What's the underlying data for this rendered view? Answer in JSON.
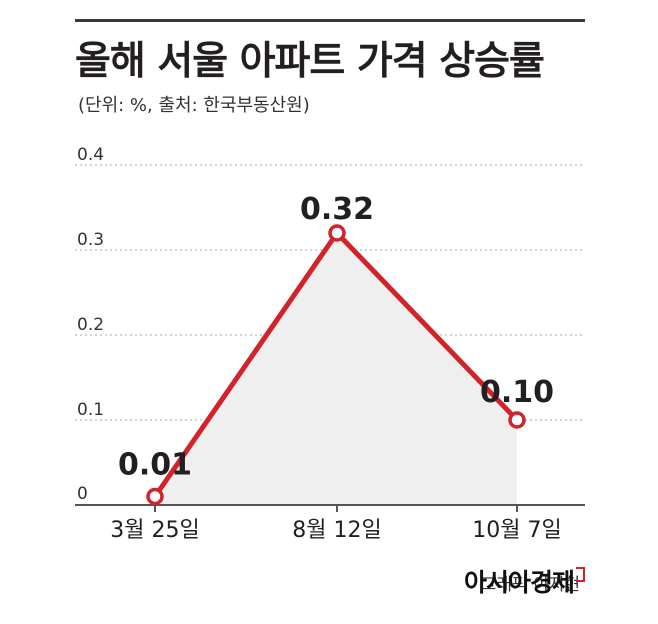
{
  "chart_data": {
    "type": "area",
    "title": "올해 서울 아파트 가격 상승률",
    "subtitle": "(단위: %, 출처: 한국부동산원)",
    "categories": [
      "3월 25일",
      "8월 12일",
      "10월 7일"
    ],
    "values": [
      0.01,
      0.32,
      0.1
    ],
    "data_labels": [
      "0.01",
      "0.32",
      "0.10"
    ],
    "yticks": [
      "0",
      "0.1",
      "0.2",
      "0.3",
      "0.4"
    ],
    "ylim": [
      0,
      0.4
    ],
    "grid": true,
    "line_color": "#d2232a",
    "fill_color": "#efefef"
  },
  "footer": {
    "credit": "그래픽 이지현",
    "brand": "아시아경제"
  }
}
